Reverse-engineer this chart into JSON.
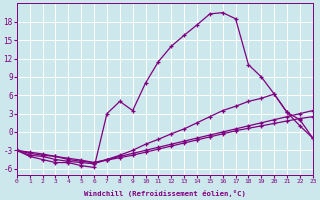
{
  "xlabel": "Windchill (Refroidissement éolien,°C)",
  "ylabel": "",
  "background_color": "#cce8ec",
  "line_color": "#800080",
  "grid_color": "#ffffff",
  "xlim": [
    0,
    23
  ],
  "ylim": [
    -7,
    21
  ],
  "xticks": [
    0,
    1,
    2,
    3,
    4,
    5,
    6,
    7,
    8,
    9,
    10,
    11,
    12,
    13,
    14,
    15,
    16,
    17,
    18,
    19,
    20,
    21,
    22,
    23
  ],
  "yticks": [
    -6,
    -3,
    0,
    3,
    6,
    9,
    12,
    15,
    18
  ],
  "curves": [
    {
      "x": [
        0,
        1,
        2,
        3,
        4,
        5,
        6,
        7,
        8,
        9,
        10,
        11,
        12,
        13,
        14,
        15,
        16,
        17,
        18,
        19,
        20,
        21,
        22,
        23
      ],
      "y": [
        -3,
        -4,
        -4.5,
        -5,
        -5,
        -5.5,
        -5.8,
        3,
        5,
        3.5,
        8,
        11.5,
        14,
        15.8,
        17.5,
        19.3,
        19.5,
        18.5,
        11.0,
        9.0,
        6.2,
        3.2,
        1.0,
        -1.0
      ]
    },
    {
      "x": [
        0,
        1,
        2,
        3,
        4,
        5,
        6,
        7,
        8,
        9,
        10,
        11,
        12,
        13,
        14,
        15,
        16,
        17,
        18,
        19,
        20,
        21,
        22,
        23
      ],
      "y": [
        -3,
        -3.8,
        -4,
        -4.5,
        -4.8,
        -5.0,
        -5.2,
        -4.5,
        -3.8,
        -3.0,
        -2.0,
        -1.2,
        -0.3,
        0.5,
        1.5,
        2.5,
        3.5,
        4.2,
        5.0,
        5.5,
        6.2,
        3.2,
        2.0,
        -1.0
      ]
    },
    {
      "x": [
        0,
        1,
        2,
        3,
        4,
        5,
        6,
        7,
        8,
        9,
        10,
        11,
        12,
        13,
        14,
        15,
        16,
        17,
        18,
        19,
        20,
        21,
        22,
        23
      ],
      "y": [
        -3,
        -3.5,
        -3.8,
        -4.0,
        -4.5,
        -4.8,
        -5.0,
        -4.5,
        -4.0,
        -3.5,
        -3.0,
        -2.5,
        -2.0,
        -1.5,
        -1.0,
        -0.5,
        0.0,
        0.5,
        1.0,
        1.5,
        2.0,
        2.5,
        3.0,
        3.5
      ]
    },
    {
      "x": [
        0,
        1,
        2,
        3,
        4,
        5,
        6,
        7,
        8,
        9,
        10,
        11,
        12,
        13,
        14,
        15,
        16,
        17,
        18,
        19,
        20,
        21,
        22,
        23
      ],
      "y": [
        -3,
        -3.3,
        -3.6,
        -4.0,
        -4.3,
        -4.6,
        -5.0,
        -4.6,
        -4.2,
        -3.8,
        -3.3,
        -2.8,
        -2.3,
        -1.8,
        -1.3,
        -0.8,
        -0.3,
        0.2,
        0.6,
        1.0,
        1.4,
        1.8,
        2.2,
        2.5
      ]
    }
  ]
}
